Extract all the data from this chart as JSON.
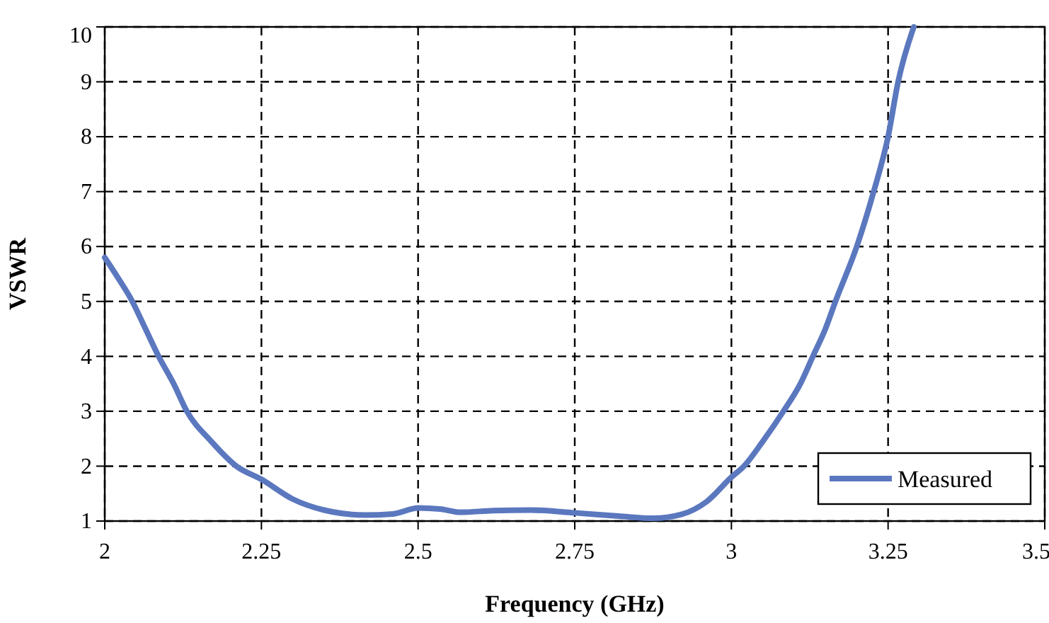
{
  "chart_data": {
    "type": "line",
    "xlabel": "Frequency  (GHz)",
    "ylabel": "VSWR",
    "xlim": [
      2,
      3.5
    ],
    "xticks": [
      2,
      2.25,
      2.5,
      2.75,
      3,
      3.25,
      3.5
    ],
    "ylim": [
      1,
      10
    ],
    "yticks": [
      1,
      2,
      3,
      4,
      5,
      6,
      7,
      8,
      9,
      10
    ],
    "grid": true,
    "legend": "bottom right",
    "series": [
      {
        "name": "Measured",
        "color": "#5b78bf",
        "x": [
          2,
          2.02,
          2.044,
          2.065,
          2.086,
          2.11,
          2.131,
          2.17,
          2.21,
          2.25,
          2.3,
          2.35,
          2.415,
          2.46,
          2.5,
          2.535,
          2.567,
          2.62,
          2.68,
          2.75,
          2.82,
          2.875,
          2.92,
          2.96,
          3,
          3.02,
          3.05,
          3.083,
          3.11,
          3.13,
          3.15,
          3.166,
          3.2,
          3.227,
          3.25,
          3.266,
          3.291
        ],
        "values": [
          5.8,
          5.45,
          5,
          4.5,
          4,
          3.5,
          3,
          2.45,
          2,
          1.76,
          1.4,
          1.2,
          1.11,
          1.13,
          1.24,
          1.22,
          1.16,
          1.19,
          1.2,
          1.15,
          1.09,
          1.05,
          1.12,
          1.35,
          1.8,
          2,
          2.45,
          3,
          3.5,
          4,
          4.5,
          5,
          6,
          7,
          8,
          9,
          10
        ]
      }
    ]
  }
}
